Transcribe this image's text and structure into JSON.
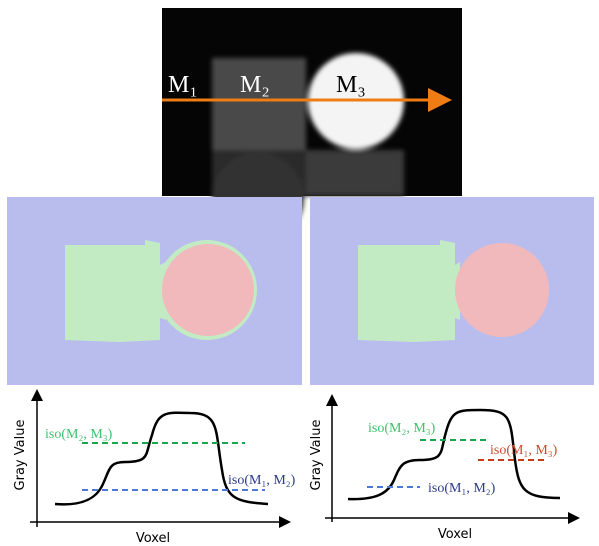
{
  "ct_image": {
    "labels": [
      "M₁",
      "M₂",
      "M₃"
    ]
  },
  "left_plot": {
    "y_label": "Gray Value",
    "x_label": "Voxel",
    "iso_labels": [
      "iso(M₂, M₃)",
      "iso(M₁, M₂)"
    ]
  },
  "right_plot": {
    "y_label": "Gray Value",
    "x_label": "Voxel",
    "iso_labels": [
      "iso(M₂, M₃)",
      "iso(M₁, M₃)",
      "iso(M₁, M₂)"
    ]
  }
}
